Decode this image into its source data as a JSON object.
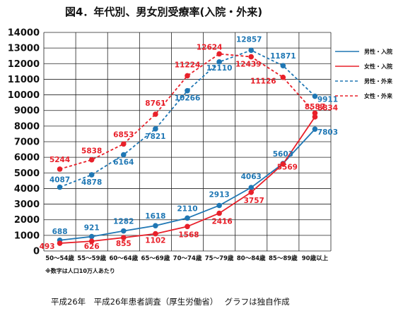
{
  "chart_data": {
    "type": "line",
    "title": "図4．年代別、男女別受療率(入院・外来)",
    "categories": [
      "50～54歳",
      "55～59歳",
      "60～64歳",
      "65～69歳",
      "70～74歳",
      "75～79歳",
      "80～84歳",
      "85～89歳",
      "90歳以上"
    ],
    "ylim": [
      0,
      14000
    ],
    "yticks": [
      0,
      1000,
      2000,
      3000,
      4000,
      5000,
      6000,
      7000,
      8000,
      9000,
      10000,
      11000,
      12000,
      13000,
      14000
    ],
    "grid": true,
    "legend_position": "right",
    "series": [
      {
        "name": "男性・入院",
        "color": "#1f77b4",
        "dashed": false,
        "values": [
          688,
          921,
          1282,
          1618,
          2110,
          2913,
          4063,
          5603,
          7803
        ]
      },
      {
        "name": "女性・入院",
        "color": "#e8202a",
        "dashed": false,
        "values": [
          493,
          626,
          855,
          1102,
          1568,
          2416,
          3757,
          5569,
          8587
        ]
      },
      {
        "name": "男性・外来",
        "color": "#1f77b4",
        "dashed": true,
        "values": [
          4087,
          4878,
          6164,
          7821,
          10266,
          12110,
          12857,
          11871,
          9911
        ]
      },
      {
        "name": "女性・外来",
        "color": "#e8202a",
        "dashed": true,
        "values": [
          5244,
          5838,
          6853,
          8761,
          11224,
          12624,
          12439,
          11126,
          8834
        ]
      }
    ],
    "note": "※数字は人口10万人あたり"
  },
  "footer": "平成26年　平成26年患者調査（厚生労働省）　 グラフは独自作成"
}
